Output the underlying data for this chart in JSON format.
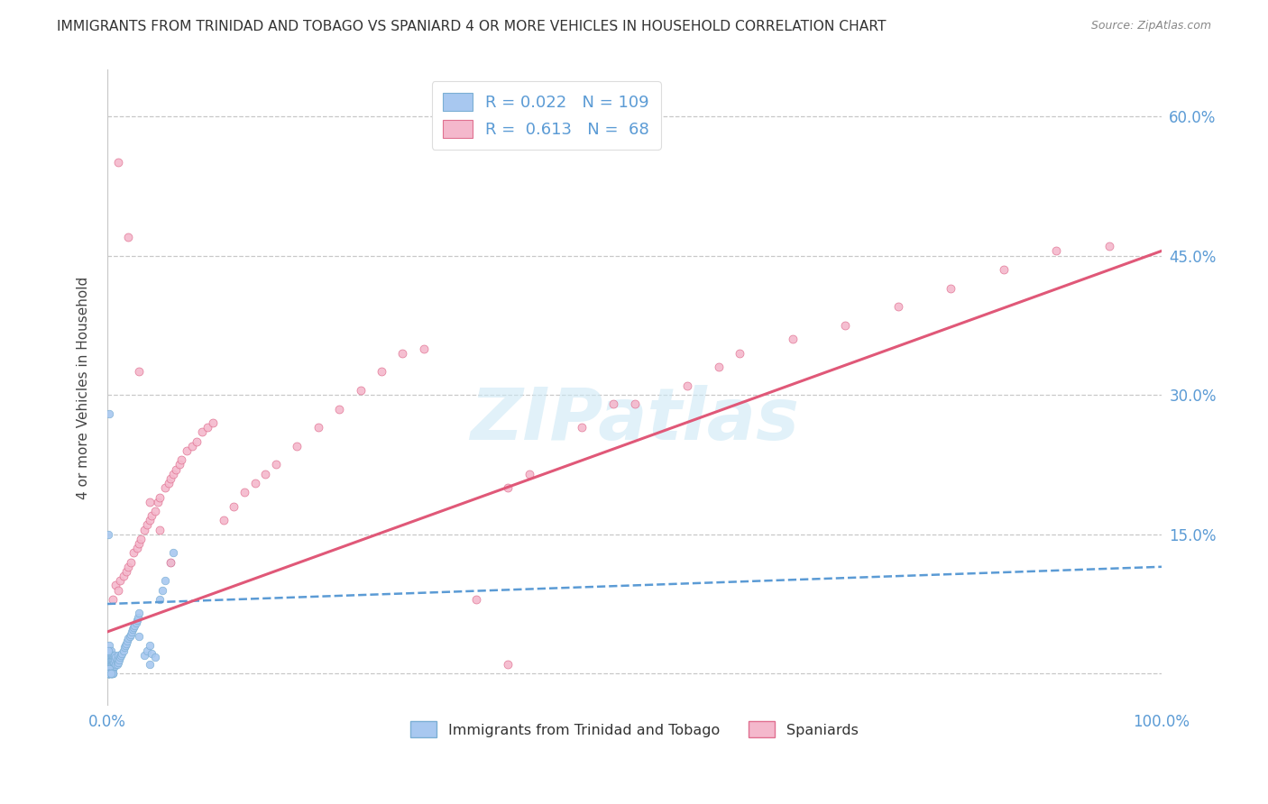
{
  "title": "IMMIGRANTS FROM TRINIDAD AND TOBAGO VS SPANIARD 4 OR MORE VEHICLES IN HOUSEHOLD CORRELATION CHART",
  "source": "Source: ZipAtlas.com",
  "ylabel": "4 or more Vehicles in Household",
  "xlim": [
    0,
    1.0
  ],
  "ylim": [
    -0.035,
    0.65
  ],
  "blue_color": "#a8c8f0",
  "blue_edge_color": "#7bafd4",
  "pink_color": "#f4b8cc",
  "pink_edge_color": "#e07090",
  "blue_line_color": "#5b9bd5",
  "pink_line_color": "#e05878",
  "grid_color": "#c8c8c8",
  "tick_color": "#5b9bd5",
  "title_color": "#333333",
  "source_color": "#888888",
  "watermark_color": "#cde8f5",
  "ylabel_color": "#444444",
  "legend_edge_color": "#dddddd",
  "bottom_legend_color": "#333333",
  "blue_line_start_y": 0.075,
  "blue_line_end_y": 0.115,
  "pink_line_start_y": 0.045,
  "pink_line_end_y": 0.455,
  "blue_r": 0.022,
  "pink_r": 0.613,
  "blue_n": 109,
  "pink_n": 68,
  "yticks": [
    0.0,
    0.15,
    0.3,
    0.45,
    0.6
  ],
  "ytick_labels_right": [
    "",
    "15.0%",
    "30.0%",
    "45.0%",
    "60.0%"
  ],
  "xtick_left": "0.0%",
  "xtick_right": "100.0%",
  "blue_scatter_x": [
    0.001,
    0.001,
    0.001,
    0.001,
    0.001,
    0.001,
    0.001,
    0.001,
    0.001,
    0.001,
    0.002,
    0.002,
    0.002,
    0.002,
    0.002,
    0.002,
    0.002,
    0.002,
    0.002,
    0.003,
    0.003,
    0.003,
    0.003,
    0.003,
    0.003,
    0.003,
    0.004,
    0.004,
    0.004,
    0.004,
    0.004,
    0.005,
    0.005,
    0.005,
    0.005,
    0.006,
    0.006,
    0.006,
    0.007,
    0.007,
    0.007,
    0.008,
    0.008,
    0.009,
    0.009,
    0.01,
    0.01,
    0.011,
    0.012,
    0.013,
    0.014,
    0.015,
    0.016,
    0.017,
    0.018,
    0.019,
    0.02,
    0.021,
    0.022,
    0.023,
    0.024,
    0.025,
    0.026,
    0.027,
    0.028,
    0.029,
    0.03,
    0.035,
    0.038,
    0.04,
    0.042,
    0.045,
    0.05,
    0.052,
    0.055,
    0.06,
    0.062,
    0.001,
    0.002,
    0.003,
    0.004,
    0.005,
    0.001,
    0.002,
    0.003,
    0.001,
    0.002,
    0.001,
    0.002,
    0.001,
    0.002,
    0.001,
    0.03,
    0.04,
    0.001,
    0.002,
    0.003,
    0.004,
    0.005,
    0.001,
    0.002,
    0.003,
    0.004,
    0.005,
    0.001,
    0.002,
    0.003
  ],
  "blue_scatter_y": [
    0.0,
    0.0,
    0.0,
    0.005,
    0.008,
    0.01,
    0.012,
    0.015,
    0.02,
    0.025,
    0.0,
    0.0,
    0.005,
    0.008,
    0.01,
    0.015,
    0.02,
    0.025,
    0.03,
    0.0,
    0.005,
    0.008,
    0.01,
    0.015,
    0.02,
    0.025,
    0.0,
    0.005,
    0.01,
    0.015,
    0.02,
    0.005,
    0.01,
    0.015,
    0.02,
    0.008,
    0.012,
    0.018,
    0.008,
    0.015,
    0.02,
    0.01,
    0.018,
    0.01,
    0.015,
    0.012,
    0.02,
    0.015,
    0.018,
    0.02,
    0.022,
    0.025,
    0.028,
    0.03,
    0.032,
    0.035,
    0.038,
    0.04,
    0.042,
    0.045,
    0.048,
    0.05,
    0.052,
    0.055,
    0.058,
    0.06,
    0.065,
    0.02,
    0.025,
    0.03,
    0.022,
    0.018,
    0.08,
    0.09,
    0.1,
    0.12,
    0.13,
    0.0,
    0.0,
    0.0,
    0.0,
    0.0,
    0.0,
    0.0,
    0.0,
    0.0,
    0.0,
    0.002,
    0.005,
    0.025,
    0.28,
    0.15,
    0.04,
    0.01,
    0.0,
    0.0,
    0.0,
    0.0,
    0.0,
    0.0,
    0.0,
    0.0,
    0.0,
    0.0,
    0.0,
    0.0,
    0.0
  ],
  "pink_scatter_x": [
    0.005,
    0.008,
    0.01,
    0.012,
    0.015,
    0.018,
    0.02,
    0.022,
    0.025,
    0.028,
    0.03,
    0.032,
    0.035,
    0.038,
    0.04,
    0.042,
    0.045,
    0.048,
    0.05,
    0.055,
    0.058,
    0.06,
    0.062,
    0.065,
    0.068,
    0.07,
    0.075,
    0.08,
    0.085,
    0.09,
    0.095,
    0.1,
    0.11,
    0.12,
    0.13,
    0.14,
    0.15,
    0.16,
    0.18,
    0.2,
    0.22,
    0.24,
    0.26,
    0.28,
    0.3,
    0.35,
    0.38,
    0.4,
    0.45,
    0.48,
    0.5,
    0.55,
    0.58,
    0.6,
    0.65,
    0.7,
    0.75,
    0.8,
    0.85,
    0.9,
    0.01,
    0.02,
    0.03,
    0.04,
    0.05,
    0.06,
    0.38,
    0.95
  ],
  "pink_scatter_y": [
    0.08,
    0.095,
    0.09,
    0.1,
    0.105,
    0.11,
    0.115,
    0.12,
    0.13,
    0.135,
    0.14,
    0.145,
    0.155,
    0.16,
    0.165,
    0.17,
    0.175,
    0.185,
    0.19,
    0.2,
    0.205,
    0.21,
    0.215,
    0.22,
    0.225,
    0.23,
    0.24,
    0.245,
    0.25,
    0.26,
    0.265,
    0.27,
    0.165,
    0.18,
    0.195,
    0.205,
    0.215,
    0.225,
    0.245,
    0.265,
    0.285,
    0.305,
    0.325,
    0.345,
    0.35,
    0.08,
    0.2,
    0.215,
    0.265,
    0.29,
    0.29,
    0.31,
    0.33,
    0.345,
    0.36,
    0.375,
    0.395,
    0.415,
    0.435,
    0.455,
    0.55,
    0.47,
    0.325,
    0.185,
    0.155,
    0.12,
    0.01,
    0.46
  ]
}
